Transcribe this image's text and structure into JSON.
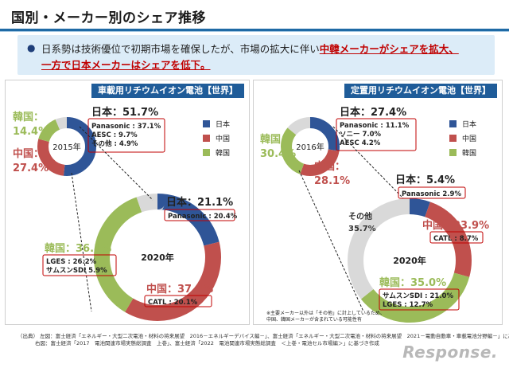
{
  "title": "国別・メーカー別のシェア推移",
  "summary": {
    "bullet": "●",
    "line1_a": "日系勢は技術優位で初期市場を確保したが、市場の拡大に伴い",
    "line1_b": "中韓メーカーがシェアを拡大、",
    "line2": "一方で日本メーカーはシェアを低下。"
  },
  "colors": {
    "japan": "#2f5597",
    "china": "#c0504d",
    "korea": "#9bbb59",
    "other": "#d9d9d9",
    "accent": "#c00000",
    "header": "#1f5c99"
  },
  "chart_data": [
    {
      "type": "pie",
      "panel": "車載用リチウムイオン電池【世界】",
      "legend": [
        "日本",
        "中国",
        "韓国"
      ],
      "charts": [
        {
          "year": "2015年",
          "slices": [
            {
              "name": "日本",
              "value": 51.7
            },
            {
              "name": "中国",
              "value": 27.4
            },
            {
              "name": "韓国",
              "value": 14.4
            },
            {
              "name": "その他",
              "value": 6.5
            }
          ],
          "labels": {
            "japan": "日本：51.7%",
            "china": "中国：\n27.4%",
            "korea": "韓国：\n14.4%"
          },
          "breakdown": [
            "Panasonic : 37.1%",
            "AESC : 9.7%",
            "その他 : 4.9%"
          ]
        },
        {
          "year": "2020年",
          "slices": [
            {
              "name": "日本",
              "value": 21.1
            },
            {
              "name": "中国",
              "value": 37.4
            },
            {
              "name": "韓国",
              "value": 36.1
            },
            {
              "name": "その他",
              "value": 5.4
            }
          ],
          "labels": {
            "japan": "日本：21.1%",
            "china": "中国：37.4%",
            "korea": "韓国：36.1%"
          },
          "breakdown": {
            "japan": [
              "Panasonic : 20.4%"
            ],
            "china": [
              "CATL : 20.1%"
            ],
            "korea": [
              "LGES : 26.2%",
              "サムスンSDI 5.9%"
            ]
          }
        }
      ]
    },
    {
      "type": "pie",
      "panel": "定置用リチウムイオン電池【世界】",
      "legend": [
        "日本",
        "中国",
        "韓国"
      ],
      "charts": [
        {
          "year": "2016年",
          "slices": [
            {
              "name": "日本",
              "value": 27.4
            },
            {
              "name": "中国",
              "value": 28.1
            },
            {
              "name": "韓国",
              "value": 30.4
            },
            {
              "name": "その他",
              "value": 14.1
            }
          ],
          "labels": {
            "japan": "日本：27.4%",
            "china": "中国：\n28.1%",
            "korea": "韓国：\n30.4%"
          },
          "breakdown": [
            "Panasonic : 11.1%",
            "ソニー 7.0%",
            "AESC 4.2%"
          ]
        },
        {
          "year": "2020年",
          "slices": [
            {
              "name": "日本",
              "value": 5.4
            },
            {
              "name": "中国",
              "value": 23.9
            },
            {
              "name": "韓国",
              "value": 35.0
            },
            {
              "name": "その他",
              "value": 35.7
            }
          ],
          "labels": {
            "japan": "日本：5.4%",
            "china": "中国：23.9%",
            "korea": "韓国：35.0%",
            "other": "その他\n35.7%"
          },
          "breakdown": {
            "japan": [
              "Panasonic 2.9%"
            ],
            "china": [
              "CATL : 8.7%"
            ],
            "korea": [
              "サムスンSDI : 21.0%",
              "LGES : 12.7%"
            ]
          }
        }
      ],
      "note": [
        "※主要メーカー以外は「その他」に計上しているため、",
        "中国、韓国メーカーが含まれている可能性有"
      ]
    }
  ],
  "source": {
    "line1": "（出典） 左図：富士経済「エネルギー・大型二次電池・材料の将来展望　2016－エネルギーデバイス編－」、富士経済「エネルギー・大型二次電池・材料の将来展望　2021－電動自動車・車載電池分野編－」に基づき作成",
    "line2": "右図：富士経済「2017　電池関連市場実態総調査　上巻」、富士経済「2022　電池関連市場実態総調査　＜上巻・電池セル市場編＞」に基づき作成"
  },
  "logo": "Response."
}
